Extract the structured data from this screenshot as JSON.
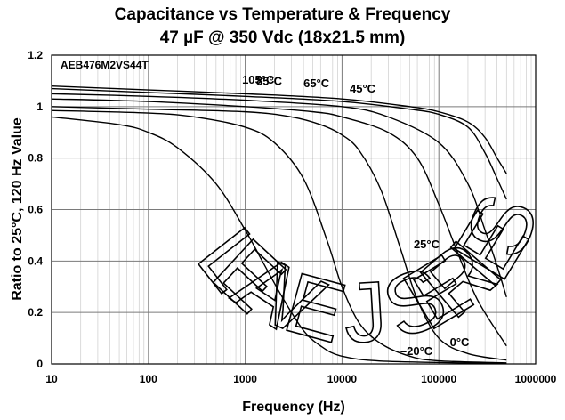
{
  "chart_data": {
    "type": "line",
    "title": "Capacitance vs Temperature & Frequency",
    "subtitle": "47 µF @ 350 Vdc (18x21.5 mm)",
    "part_number": "AEB476M2VS44T",
    "xlabel": "Frequency (Hz)",
    "ylabel": "Ratio to 25°C, 120 Hz Value",
    "x_scale": "log",
    "xlim": [
      10,
      1000000
    ],
    "ylim": [
      0,
      1.2
    ],
    "x_ticks": [
      10,
      100,
      1000,
      10000,
      100000,
      1000000
    ],
    "x_tick_labels": [
      "10",
      "100",
      "1000",
      "10000",
      "100000",
      "1000000"
    ],
    "y_ticks": [
      0,
      0.2,
      0.4,
      0.6,
      0.8,
      1,
      1.2
    ],
    "y_tick_labels": [
      "0",
      "0.2",
      "0.4",
      "0.6",
      "0.8",
      "1",
      "1.2"
    ],
    "grid": true,
    "watermark": "LEAVE J SERIES",
    "series": [
      {
        "name": "105°C",
        "label_pos": [
          2000,
          1.09
        ],
        "label_anchor": "end",
        "points": [
          [
            10,
            1.08
          ],
          [
            100,
            1.065
          ],
          [
            1000,
            1.05
          ],
          [
            10000,
            1.03
          ],
          [
            50000,
            1.0
          ],
          [
            100000,
            0.98
          ],
          [
            200000,
            0.94
          ],
          [
            300000,
            0.88
          ],
          [
            400000,
            0.8
          ],
          [
            500000,
            0.74
          ]
        ]
      },
      {
        "name": "85°C",
        "label_pos": [
          1300,
          1.085
        ],
        "label_anchor": "start",
        "points": [
          [
            10,
            1.07
          ],
          [
            100,
            1.055
          ],
          [
            1000,
            1.04
          ],
          [
            10000,
            1.02
          ],
          [
            50000,
            0.99
          ],
          [
            100000,
            0.97
          ],
          [
            200000,
            0.92
          ],
          [
            300000,
            0.82
          ],
          [
            400000,
            0.72
          ],
          [
            500000,
            0.64
          ]
        ]
      },
      {
        "name": "65°C",
        "label_pos": [
          4000,
          1.075
        ],
        "label_anchor": "start",
        "points": [
          [
            10,
            1.05
          ],
          [
            100,
            1.04
          ],
          [
            1000,
            1.025
          ],
          [
            10000,
            1.0
          ],
          [
            30000,
            0.96
          ],
          [
            100000,
            0.86
          ],
          [
            200000,
            0.7
          ],
          [
            300000,
            0.52
          ],
          [
            400000,
            0.38
          ],
          [
            500000,
            0.26
          ]
        ]
      },
      {
        "name": "45°C",
        "label_pos": [
          12000,
          1.055
        ],
        "label_anchor": "start",
        "points": [
          [
            10,
            1.03
          ],
          [
            100,
            1.02
          ],
          [
            1000,
            1.0
          ],
          [
            5000,
            0.98
          ],
          [
            10000,
            0.96
          ],
          [
            30000,
            0.9
          ],
          [
            60000,
            0.8
          ],
          [
            100000,
            0.62
          ],
          [
            150000,
            0.45
          ],
          [
            250000,
            0.25
          ],
          [
            500000,
            0.07
          ]
        ]
      },
      {
        "name": "25°C",
        "label_pos": [
          55000,
          0.45
        ],
        "label_anchor": "start",
        "points": [
          [
            10,
            1.0
          ],
          [
            100,
            0.99
          ],
          [
            1000,
            0.98
          ],
          [
            3000,
            0.96
          ],
          [
            6000,
            0.93
          ],
          [
            10000,
            0.89
          ],
          [
            15000,
            0.83
          ],
          [
            25000,
            0.68
          ],
          [
            40000,
            0.45
          ],
          [
            60000,
            0.25
          ],
          [
            100000,
            0.1
          ],
          [
            200000,
            0.04
          ],
          [
            500000,
            0.015
          ]
        ]
      },
      {
        "name": "0°C",
        "label_pos": [
          130000,
          0.07
        ],
        "label_anchor": "start",
        "points": [
          [
            10,
            0.985
          ],
          [
            100,
            0.975
          ],
          [
            300,
            0.96
          ],
          [
            1000,
            0.92
          ],
          [
            2000,
            0.86
          ],
          [
            4000,
            0.72
          ],
          [
            7000,
            0.48
          ],
          [
            10000,
            0.3
          ],
          [
            15000,
            0.16
          ],
          [
            25000,
            0.08
          ],
          [
            50000,
            0.03
          ],
          [
            100000,
            0.012
          ],
          [
            500000,
            0.004
          ]
        ]
      },
      {
        "name": "–20°C",
        "label_pos": [
          40000,
          0.035
        ],
        "label_anchor": "start",
        "points": [
          [
            10,
            0.96
          ],
          [
            50,
            0.93
          ],
          [
            100,
            0.9
          ],
          [
            200,
            0.84
          ],
          [
            500,
            0.7
          ],
          [
            1000,
            0.52
          ],
          [
            1500,
            0.4
          ],
          [
            2500,
            0.25
          ],
          [
            4000,
            0.13
          ],
          [
            6000,
            0.07
          ],
          [
            10000,
            0.03
          ],
          [
            30000,
            0.01
          ],
          [
            500000,
            0.002
          ]
        ]
      }
    ]
  }
}
